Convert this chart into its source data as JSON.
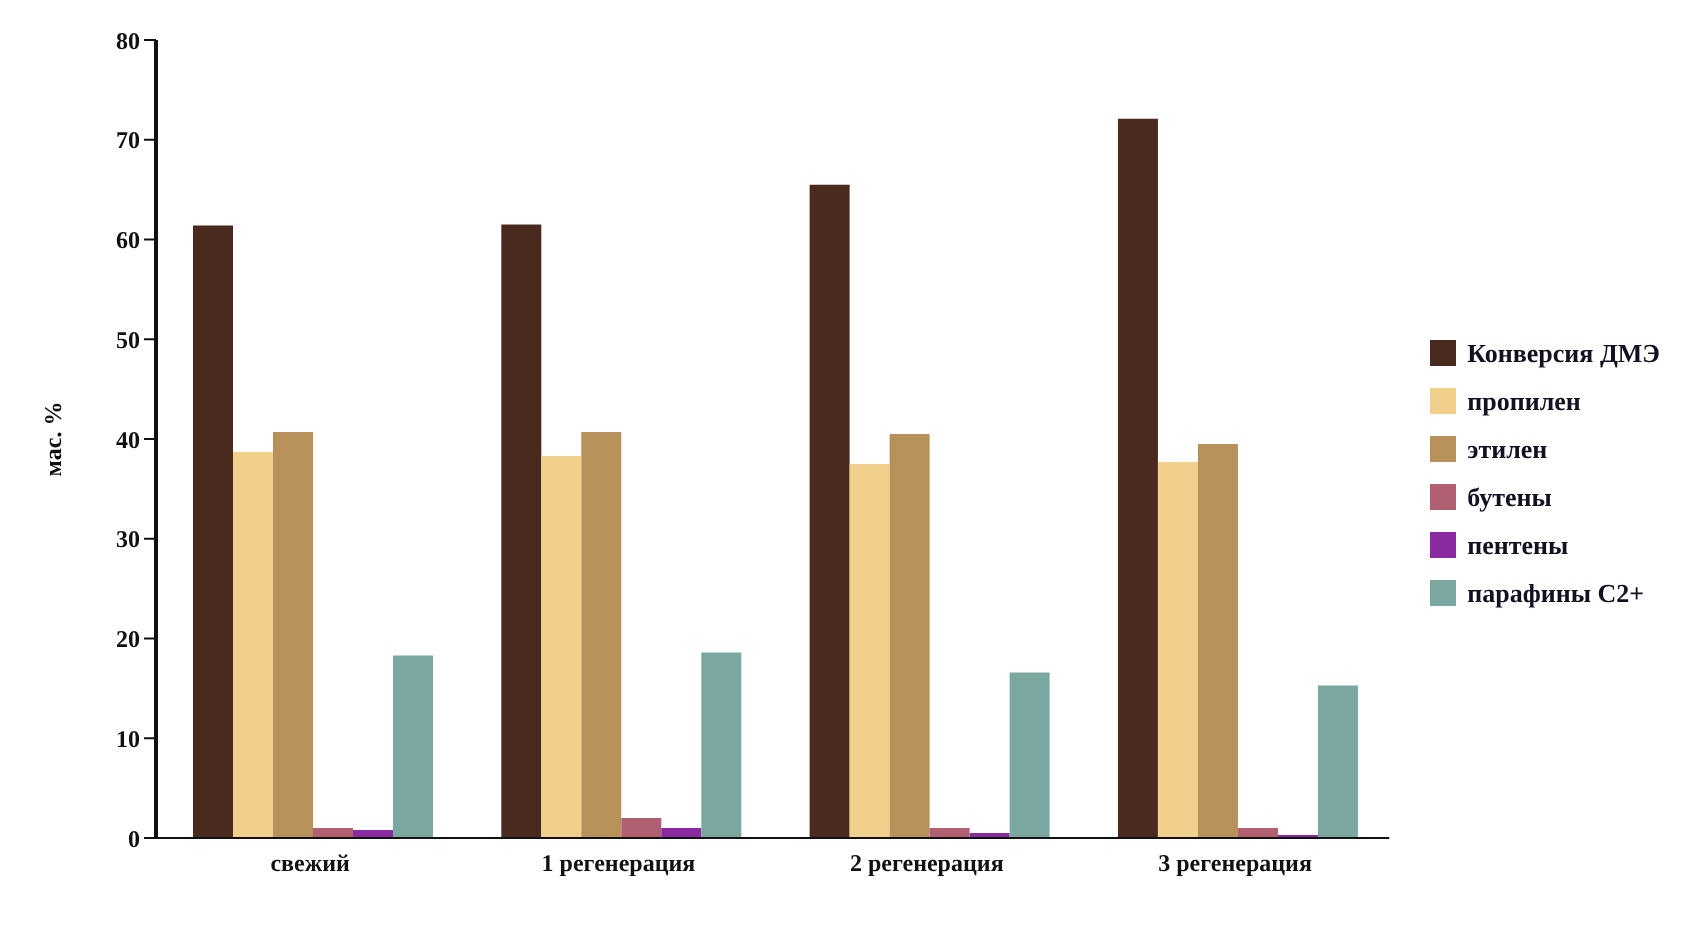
{
  "chart_data": {
    "type": "bar",
    "ylabel": "мас. %",
    "categories": [
      "свежий",
      "1 регенерация",
      "2 регенерация",
      "3 регенерация"
    ],
    "series": [
      {
        "name": "Конверсия ДМЭ",
        "color": "#4a2a1e",
        "values": [
          61.4,
          61.5,
          65.5,
          72.1
        ]
      },
      {
        "name": "пропилен",
        "color": "#f0d08a",
        "values": [
          38.7,
          38.3,
          37.5,
          37.7
        ]
      },
      {
        "name": "этилен",
        "color": "#b8905a",
        "values": [
          40.7,
          40.7,
          40.5,
          39.5
        ]
      },
      {
        "name": "бутены",
        "color": "#b06070",
        "values": [
          1.0,
          2.0,
          1.0,
          1.0
        ]
      },
      {
        "name": "пентены",
        "color": "#8a2aa0",
        "values": [
          0.8,
          1.0,
          0.5,
          0.3
        ]
      },
      {
        "name": "парафины C2+",
        "color": "#7aa8a0",
        "values": [
          18.3,
          18.6,
          16.6,
          15.3
        ]
      }
    ],
    "ylim": [
      0,
      80
    ],
    "yticks": [
      0,
      10,
      20,
      30,
      40,
      50,
      60,
      70,
      80
    ],
    "grid": false,
    "legend": "right"
  }
}
